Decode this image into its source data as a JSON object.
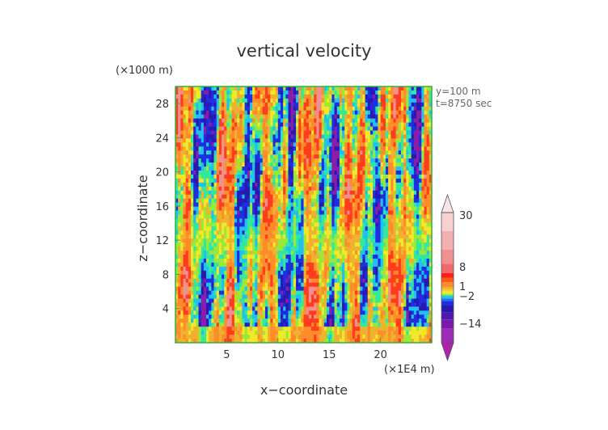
{
  "chart_data": {
    "type": "heatmap",
    "title": "vertical velocity",
    "xlabel": "x−coordinate",
    "ylabel": "z−coordinate",
    "x_unit": "(×1E4 m)",
    "y_unit": "(×1000 m)",
    "annotations": [
      "y=100  m",
      "t=8750 sec"
    ],
    "xlim": [
      0,
      25
    ],
    "ylim": [
      0,
      30
    ],
    "x_ticks": [
      5,
      10,
      15,
      20
    ],
    "y_ticks": [
      4,
      8,
      12,
      16,
      20,
      24,
      28
    ],
    "colorbar": {
      "labels": [
        30,
        8,
        1,
        -2,
        -14
      ],
      "labels_text": [
        "30",
        "8",
        "1",
        "−2",
        "−14"
      ],
      "range": [
        -20,
        36
      ]
    },
    "colors": {
      "strong_positive": "#f0a0a0",
      "positive": "#ff5a1e",
      "weak_positive": "#f0e020",
      "near_zero": "#30e8a0",
      "negative": "#1e2ee0",
      "strong_negative": "#8a1ea8",
      "frame": "#30b040"
    }
  }
}
